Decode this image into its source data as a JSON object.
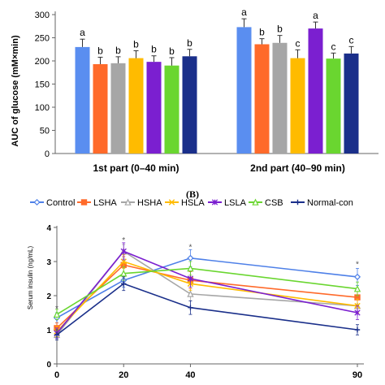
{
  "chart_data": [
    {
      "type": "bar",
      "title": "",
      "xlabel": "",
      "ylabel": "AUC of glucose (mM×min)",
      "ylim": [
        0,
        300
      ],
      "yticks": [
        0,
        50,
        100,
        150,
        200,
        250,
        300
      ],
      "grid": false,
      "legend": "none",
      "groups": [
        "1st part (0–40 min)",
        "2nd part (40–90 min)"
      ],
      "series": [
        {
          "color": "#5a8ef0",
          "values": [
            230,
            273
          ],
          "errors": [
            17,
            18
          ],
          "labels": [
            "a",
            "a"
          ]
        },
        {
          "color": "#ff6a2a",
          "values": [
            193,
            236
          ],
          "errors": [
            15,
            12
          ],
          "labels": [
            "b",
            "b"
          ]
        },
        {
          "color": "#a6a6a6",
          "values": [
            195,
            239
          ],
          "errors": [
            14,
            16
          ],
          "labels": [
            "b",
            "b"
          ]
        },
        {
          "color": "#ffbb00",
          "values": [
            206,
            206
          ],
          "errors": [
            16,
            18
          ],
          "labels": [
            "b",
            "c"
          ]
        },
        {
          "color": "#7b1fd0",
          "values": [
            198,
            270
          ],
          "errors": [
            13,
            14
          ],
          "labels": [
            "b",
            "a"
          ]
        },
        {
          "color": "#6ad630",
          "values": [
            190,
            205
          ],
          "errors": [
            17,
            12
          ],
          "labels": [
            "b",
            "c"
          ]
        },
        {
          "color": "#1a2f8a",
          "values": [
            210,
            216
          ],
          "errors": [
            15,
            15
          ],
          "labels": [
            "b",
            "c"
          ]
        }
      ]
    },
    {
      "type": "line",
      "panel_label": "(B)",
      "title": "",
      "xlabel": "",
      "ylabel": "Serum insulin (ng/mL)",
      "x": [
        0,
        20,
        40,
        90
      ],
      "xlim": [
        0,
        90
      ],
      "ylim": [
        0,
        4
      ],
      "yticks": [
        0,
        1,
        2,
        3,
        4
      ],
      "grid": false,
      "legend": "top",
      "significance_marks": [
        {
          "x": 0,
          "y": 1.55,
          "text": "*"
        },
        {
          "x": 20,
          "y": 3.55,
          "text": "*"
        },
        {
          "x": 40,
          "y": 3.35,
          "text": "*"
        },
        {
          "x": 90,
          "y": 2.85,
          "text": "*"
        }
      ],
      "series": [
        {
          "name": "Control",
          "color": "#4e80e8",
          "marker": "diamond",
          "values": [
            1.35,
            2.45,
            3.1,
            2.55
          ],
          "errors": [
            0.15,
            0.2,
            0.25,
            0.25
          ]
        },
        {
          "name": "LSHA",
          "color": "#ff6a2a",
          "marker": "square",
          "values": [
            1.05,
            2.9,
            2.45,
            1.95
          ],
          "errors": [
            0.15,
            0.25,
            0.25,
            0.2
          ]
        },
        {
          "name": "HSHA",
          "color": "#a6a6a6",
          "marker": "triangle",
          "values": [
            0.85,
            3.3,
            2.05,
            1.7
          ],
          "errors": [
            0.15,
            0.2,
            0.2,
            0.2
          ]
        },
        {
          "name": "HSLA",
          "color": "#ffbb00",
          "marker": "cross",
          "values": [
            0.95,
            3.0,
            2.35,
            1.7
          ],
          "errors": [
            0.15,
            0.2,
            0.2,
            0.2
          ]
        },
        {
          "name": "LSLA",
          "color": "#7b1fd0",
          "marker": "star",
          "values": [
            0.9,
            3.3,
            2.5,
            1.5
          ],
          "errors": [
            0.15,
            0.25,
            0.25,
            0.2
          ]
        },
        {
          "name": "CSB",
          "color": "#6ad630",
          "marker": "triangle",
          "values": [
            1.45,
            2.65,
            2.8,
            2.2
          ],
          "errors": [
            0.15,
            0.2,
            0.2,
            0.2
          ]
        },
        {
          "name": "Normal-con",
          "color": "#1a2f8a",
          "marker": "plus",
          "values": [
            0.85,
            2.35,
            1.65,
            1.0
          ],
          "errors": [
            0.15,
            0.2,
            0.2,
            0.15
          ]
        }
      ]
    }
  ]
}
